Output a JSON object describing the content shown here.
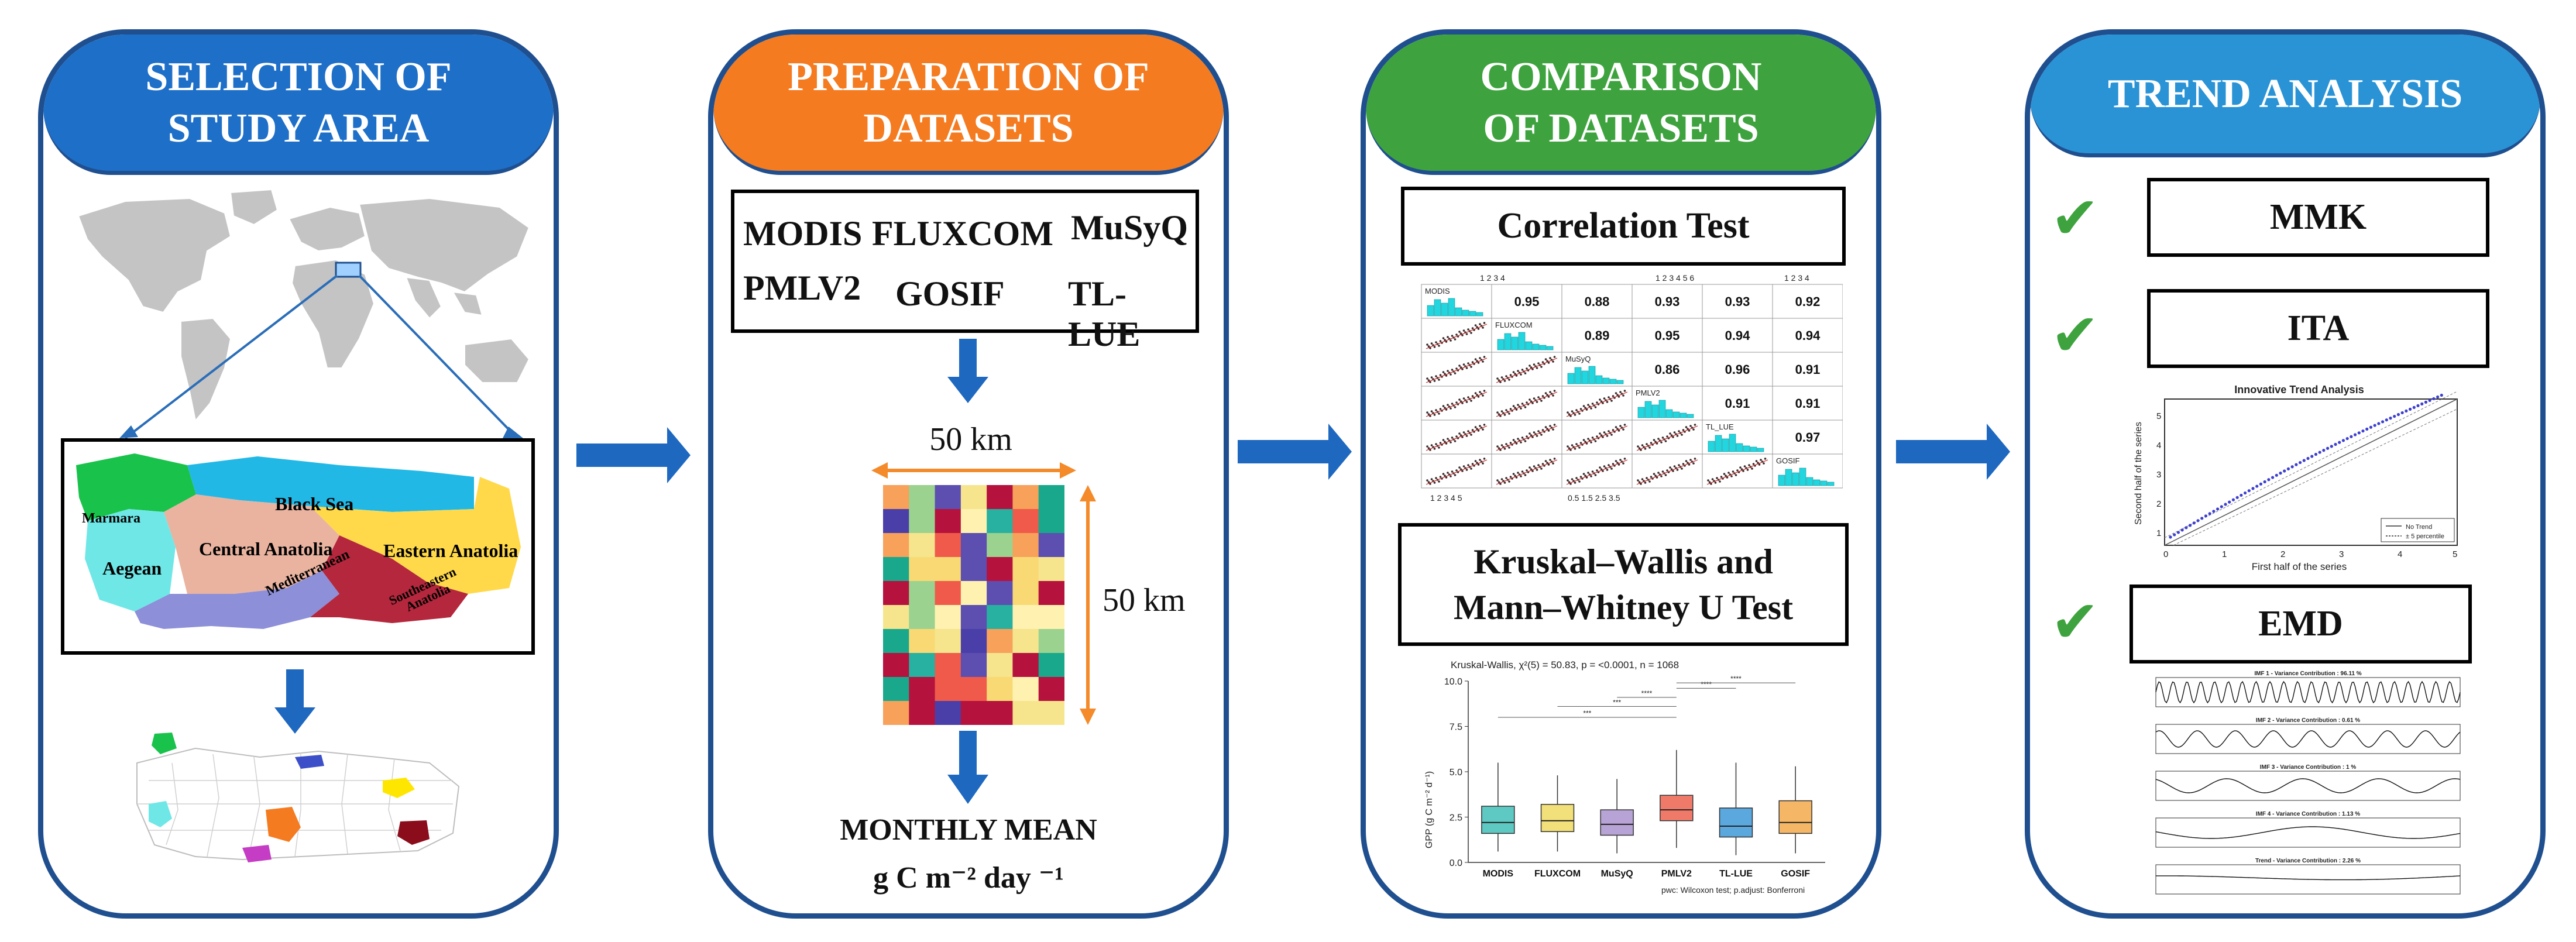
{
  "colors": {
    "border": "#1f4f8f",
    "arrow": "#1e68c0",
    "header_study": "#1e6fc8",
    "header_prep": "#f47b20",
    "header_comp": "#3ea33e",
    "header_trend": "#2a93d5",
    "check": "#3ea33e",
    "cyan_hist": "#22d6e0",
    "orange_arrow": "#f48a2a"
  },
  "panel1": {
    "title": "SELECTION OF STUDY AREA",
    "regions": {
      "marmara": "Marmara",
      "black_sea": "Black Sea",
      "aegean": "Aegean",
      "central": "Central Anatolia",
      "eastern": "Eastern Anatolia",
      "mediterranean": "Mediterranean",
      "southeastern_1": "Southeastern",
      "southeastern_2": "Anatolia"
    }
  },
  "panel2": {
    "title": "PREPARATION OF DATASETS",
    "datasets": [
      "MODIS",
      "FLUXCOM",
      "MuSyQ",
      "PMLV2",
      "GOSIF",
      "TL-LUE"
    ],
    "grid_width_label": "50 km",
    "grid_height_label": "50 km",
    "output_line1": "MONTHLY MEAN",
    "output_line2": "g C m⁻² day ⁻¹"
  },
  "panel3": {
    "title": "COMPARISON OF DATASETS",
    "correlation_title": "Correlation Test",
    "kruskal_line1": "Kruskal–Wallis and",
    "kruskal_line2": "Mann–Whitney U Test",
    "matrix_labels": [
      "MODIS",
      "FLUXCOM",
      "MuSyQ",
      "PMLV2",
      "TL_LUE",
      "GOSIF"
    ],
    "correlations": [
      [
        "0.95",
        "0.88",
        "0.93",
        "0.93",
        "0.92"
      ],
      [
        "0.89",
        "0.95",
        "0.94",
        "0.94"
      ],
      [
        "0.86",
        "0.96",
        "0.91"
      ],
      [
        "0.91",
        "0.91"
      ],
      [
        "0.97"
      ]
    ],
    "matrix_top_ticks_1": "1 2 3 4",
    "matrix_top_ticks_2": "1 2 3 4 5 6",
    "matrix_bottom_ticks_1": "1 2 3 4 5",
    "matrix_bottom_ticks_2": "0.5 1.5 2.5 3.5",
    "boxplot_stats": "Kruskal-Wallis, χ²(5) = 50.83, p = <0.0001, n = 1068",
    "boxplot_footer": "pwc: Wilcoxon test; p.adjust: Bonferroni",
    "sig_mark": "****",
    "sig_mark_3": "***",
    "boxplot_ylabel": "GPP (g C m⁻² d⁻¹)",
    "boxplot_yticks": [
      "10.0",
      "7.5",
      "5.0",
      "2.5",
      "0.0"
    ],
    "chart_data": {
      "type": "box",
      "categories": [
        "MODIS",
        "FLUXCOM",
        "MuSyQ",
        "PMLV2",
        "TL-LUE",
        "GOSIF"
      ],
      "series": [
        {
          "name": "q1",
          "values": [
            1.6,
            1.7,
            1.5,
            2.3,
            1.4,
            1.6
          ]
        },
        {
          "name": "median",
          "values": [
            2.2,
            2.3,
            2.1,
            2.9,
            2.0,
            2.2
          ]
        },
        {
          "name": "q3",
          "values": [
            3.1,
            3.2,
            2.9,
            3.7,
            3.0,
            3.4
          ]
        },
        {
          "name": "whisker_low",
          "values": [
            0.6,
            0.6,
            0.5,
            0.8,
            0.4,
            0.5
          ]
        },
        {
          "name": "whisker_high",
          "values": [
            5.5,
            4.8,
            4.6,
            6.2,
            5.5,
            5.3
          ]
        }
      ],
      "ylim": [
        0,
        10
      ],
      "box_colors": [
        "#5ec9c3",
        "#f2e07a",
        "#b8a3d6",
        "#f07a6a",
        "#5aa8dd",
        "#f5b766"
      ]
    }
  },
  "panel4": {
    "title": "TREND ANALYSIS",
    "methods": [
      "MMK",
      "ITA",
      "EMD"
    ],
    "check_glyph": "✔",
    "ita_title": "Innovative Trend Analysis",
    "ita_xlabel": "First half of the series",
    "ita_ylabel": "Second half of the series",
    "ita_legend_1": "No Trend",
    "ita_legend_2": "± 5 percentile",
    "ita_ticks_x": [
      "0",
      "1",
      "2",
      "3",
      "4",
      "5"
    ],
    "ita_ticks_y": [
      "1",
      "2",
      "3",
      "4",
      "5"
    ],
    "emd_titles": [
      "IMF 1 - Variance Contribution : 96.11 %",
      "IMF 2 - Variance Contribution : 0.61 %",
      "IMF 3 - Variance Contribution : 1 %",
      "IMF 4 - Variance Contribution : 1.13 %",
      "Trend - Variance Contribution : 2.26 %"
    ]
  }
}
